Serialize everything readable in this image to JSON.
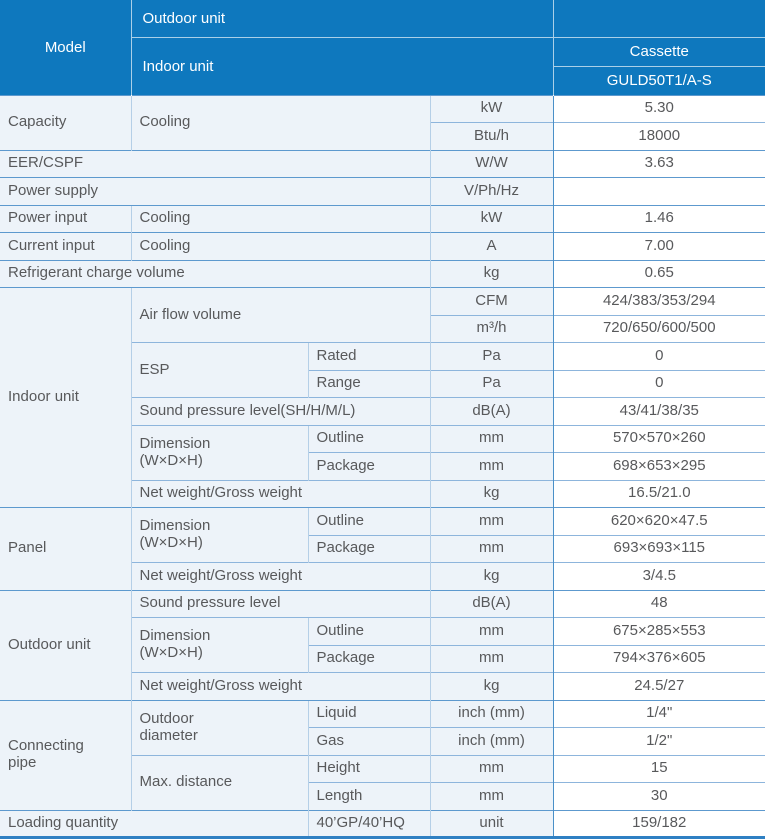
{
  "colors": {
    "header_bg": "#0e78be",
    "cell_bg": "#edf3f9",
    "value_bg": "#ffffff",
    "text": "#58595b",
    "header_text": "#ffffff",
    "grid_light": "#b5cfe7",
    "grid_inner": "#8db5dc",
    "grid_section": "#5d99ce",
    "grid_strong": "#4a90c8",
    "bottom_border": "#2f80c3"
  },
  "header": {
    "model_label": "Model",
    "outdoor_unit_label": "Outdoor unit",
    "indoor_unit_label": "Indoor unit",
    "outdoor_model": "",
    "category": "Cassette",
    "indoor_model": "GULD50T1/A-S"
  },
  "table": {
    "rows": [
      {
        "sec": true,
        "cells": [
          {
            "t": "Capacity",
            "rs": 2
          },
          {
            "t": "Cooling",
            "cs": 2,
            "rs": 2
          },
          {
            "t": "kW"
          },
          {
            "t": "5.30"
          }
        ]
      },
      {
        "sec": false,
        "cells": [
          {
            "t": "Btu/h"
          },
          {
            "t": "18000"
          }
        ]
      },
      {
        "sec": true,
        "cells": [
          {
            "t": "EER/CSPF",
            "cs": 3
          },
          {
            "t": "W/W"
          },
          {
            "t": "3.63"
          }
        ]
      },
      {
        "sec": true,
        "cells": [
          {
            "t": "Power supply",
            "cs": 3
          },
          {
            "t": "V/Ph/Hz"
          },
          {
            "t": ""
          }
        ]
      },
      {
        "sec": true,
        "cells": [
          {
            "t": "Power input"
          },
          {
            "t": "Cooling",
            "cs": 2
          },
          {
            "t": "kW"
          },
          {
            "t": "1.46"
          }
        ]
      },
      {
        "sec": true,
        "cells": [
          {
            "t": "Current input"
          },
          {
            "t": "Cooling",
            "cs": 2
          },
          {
            "t": "A"
          },
          {
            "t": "7.00"
          }
        ]
      },
      {
        "sec": true,
        "cells": [
          {
            "t": "Refrigerant charge volume",
            "cs": 3
          },
          {
            "t": "kg"
          },
          {
            "t": "0.65"
          }
        ]
      },
      {
        "sec": true,
        "cells": [
          {
            "t": "Indoor unit",
            "rs": 8
          },
          {
            "t": "Air flow volume",
            "cs": 2,
            "rs": 2
          },
          {
            "t": "CFM"
          },
          {
            "t": "424/383/353/294"
          }
        ]
      },
      {
        "sec": false,
        "cells": [
          {
            "t": "m³/h"
          },
          {
            "t": "720/650/600/500"
          }
        ]
      },
      {
        "sec": false,
        "cells": [
          {
            "t": "ESP",
            "rs": 2
          },
          {
            "t": "Rated"
          },
          {
            "t": "Pa"
          },
          {
            "t": "0"
          }
        ]
      },
      {
        "sec": false,
        "cells": [
          {
            "t": "Range"
          },
          {
            "t": "Pa"
          },
          {
            "t": "0"
          }
        ]
      },
      {
        "sec": false,
        "cells": [
          {
            "t": "Sound pressure level(SH/H/M/L)",
            "cs": 2
          },
          {
            "t": "dB(A)"
          },
          {
            "t": "43/41/38/35"
          }
        ]
      },
      {
        "sec": false,
        "cells": [
          {
            "t": "Dimension\n(W×D×H)",
            "rs": 2
          },
          {
            "t": "Outline"
          },
          {
            "t": "mm"
          },
          {
            "t": "570×570×260"
          }
        ]
      },
      {
        "sec": false,
        "cells": [
          {
            "t": "Package"
          },
          {
            "t": "mm"
          },
          {
            "t": "698×653×295"
          }
        ]
      },
      {
        "sec": false,
        "cells": [
          {
            "t": "Net weight/Gross weight",
            "cs": 2
          },
          {
            "t": "kg"
          },
          {
            "t": "16.5/21.0"
          }
        ]
      },
      {
        "sec": true,
        "cells": [
          {
            "t": "Panel",
            "rs": 3
          },
          {
            "t": "Dimension\n(W×D×H)",
            "rs": 2
          },
          {
            "t": "Outline"
          },
          {
            "t": "mm"
          },
          {
            "t": "620×620×47.5"
          }
        ]
      },
      {
        "sec": false,
        "cells": [
          {
            "t": "Package"
          },
          {
            "t": "mm"
          },
          {
            "t": "693×693×115"
          }
        ]
      },
      {
        "sec": false,
        "cells": [
          {
            "t": "Net weight/Gross weight",
            "cs": 2
          },
          {
            "t": "kg"
          },
          {
            "t": "3/4.5"
          }
        ]
      },
      {
        "sec": true,
        "cells": [
          {
            "t": "Outdoor unit",
            "rs": 4
          },
          {
            "t": "Sound pressure level",
            "cs": 2
          },
          {
            "t": "dB(A)"
          },
          {
            "t": "48"
          }
        ]
      },
      {
        "sec": false,
        "cells": [
          {
            "t": "Dimension\n(W×D×H)",
            "rs": 2
          },
          {
            "t": "Outline"
          },
          {
            "t": "mm"
          },
          {
            "t": "675×285×553"
          }
        ]
      },
      {
        "sec": false,
        "cells": [
          {
            "t": "Package"
          },
          {
            "t": "mm"
          },
          {
            "t": "794×376×605"
          }
        ]
      },
      {
        "sec": false,
        "cells": [
          {
            "t": "Net weight/Gross weight",
            "cs": 2
          },
          {
            "t": "kg"
          },
          {
            "t": "24.5/27"
          }
        ]
      },
      {
        "sec": true,
        "cells": [
          {
            "t": "Connecting\npipe",
            "rs": 4
          },
          {
            "t": "Outdoor\ndiameter",
            "rs": 2
          },
          {
            "t": "Liquid"
          },
          {
            "t": "inch (mm)"
          },
          {
            "t": "1/4\""
          }
        ]
      },
      {
        "sec": false,
        "cells": [
          {
            "t": "Gas"
          },
          {
            "t": "inch (mm)"
          },
          {
            "t": "1/2\""
          }
        ]
      },
      {
        "sec": false,
        "cells": [
          {
            "t": "Max. distance",
            "rs": 2
          },
          {
            "t": "Height"
          },
          {
            "t": "mm"
          },
          {
            "t": "15"
          }
        ]
      },
      {
        "sec": false,
        "cells": [
          {
            "t": "Length"
          },
          {
            "t": "mm"
          },
          {
            "t": "30"
          }
        ]
      },
      {
        "sec": true,
        "cells": [
          {
            "t": "Loading quantity",
            "cs": 2
          },
          {
            "t": "40’GP/40’HQ"
          },
          {
            "t": "unit"
          },
          {
            "t": "159/182"
          }
        ]
      }
    ]
  }
}
